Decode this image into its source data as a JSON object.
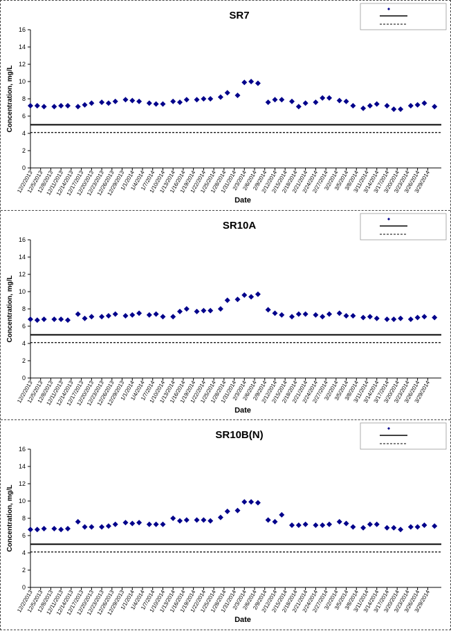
{
  "chart_data": [
    {
      "type": "scatter",
      "title": "SR7",
      "xlabel": "Date",
      "ylabel": "Concentration, mg/L",
      "ylim": [
        0,
        16
      ],
      "yticks": [
        "0",
        "2",
        "4",
        "6",
        "8",
        "10",
        "12",
        "14",
        "16"
      ],
      "xlim": [
        "12/2/2013",
        "4/2/2014"
      ],
      "xticks": [
        "12/2/2013",
        "12/5/2013",
        "12/8/2013",
        "12/11/2013",
        "12/14/2013",
        "12/17/2013",
        "12/20/2013",
        "12/23/2013",
        "12/26/2013",
        "12/29/2013",
        "1/1/2014",
        "1/4/2014",
        "1/7/2014",
        "1/10/2014",
        "1/13/2014",
        "1/16/2014",
        "1/19/2014",
        "1/22/2014",
        "1/25/2014",
        "1/28/2014",
        "1/31/2014",
        "2/3/2014",
        "2/6/2014",
        "2/9/2014",
        "2/12/2014",
        "2/15/2014",
        "2/18/2014",
        "2/21/2014",
        "2/24/2014",
        "2/27/2014",
        "3/2/2014",
        "3/5/2014",
        "3/8/2014",
        "3/11/2014",
        "3/14/2014",
        "3/17/2014",
        "3/20/2014",
        "3/23/2014",
        "3/26/2014",
        "3/29/2014"
      ],
      "grid": false,
      "legend": "top-right",
      "hlines": [
        5,
        4.1
      ],
      "series": [
        {
          "marker": "diamond",
          "color": "#00008B",
          "x": [
            "12/2/2013",
            "12/4/2013",
            "12/6/2013",
            "12/9/2013",
            "12/11/2013",
            "12/13/2013",
            "12/16/2013",
            "12/18/2013",
            "12/20/2013",
            "12/23/2013",
            "12/25/2013",
            "12/27/2013",
            "12/30/2013",
            "1/1/2014",
            "1/3/2014",
            "1/6/2014",
            "1/8/2014",
            "1/10/2014",
            "1/13/2014",
            "1/15/2014",
            "1/17/2014",
            "1/20/2014",
            "1/22/2014",
            "1/24/2014",
            "1/27/2014",
            "1/29/2014",
            "2/1/2014",
            "2/3/2014",
            "2/5/2014",
            "2/7/2014",
            "2/10/2014",
            "2/12/2014",
            "2/14/2014",
            "2/17/2014",
            "2/19/2014",
            "2/21/2014",
            "2/24/2014",
            "2/26/2014",
            "2/28/2014",
            "3/3/2014",
            "3/5/2014",
            "3/7/2014",
            "3/10/2014",
            "3/12/2014",
            "3/14/2014",
            "3/17/2014",
            "3/19/2014",
            "3/21/2014",
            "3/24/2014",
            "3/26/2014",
            "3/28/2014",
            "3/31/2014"
          ],
          "values": [
            7.2,
            7.2,
            7.1,
            7.1,
            7.2,
            7.2,
            7.1,
            7.3,
            7.5,
            7.6,
            7.5,
            7.7,
            7.9,
            7.8,
            7.7,
            7.5,
            7.4,
            7.4,
            7.7,
            7.6,
            7.9,
            7.9,
            8.0,
            8.0,
            8.2,
            8.7,
            8.4,
            9.9,
            10.0,
            9.8,
            7.6,
            7.9,
            7.9,
            7.7,
            7.1,
            7.5,
            7.6,
            8.1,
            8.1,
            7.8,
            7.7,
            7.2,
            6.9,
            7.2,
            7.4,
            7.2,
            6.8,
            6.8,
            7.2,
            7.3,
            7.5,
            7.1
          ]
        }
      ]
    },
    {
      "type": "scatter",
      "title": "SR10A",
      "xlabel": "Date",
      "ylabel": "Concentration, mg/L",
      "ylim": [
        0,
        16
      ],
      "yticks": [
        "0",
        "2",
        "4",
        "6",
        "8",
        "10",
        "12",
        "14",
        "16"
      ],
      "xlim": [
        "12/2/2013",
        "4/2/2014"
      ],
      "xticks": [
        "12/2/2013",
        "12/5/2013",
        "12/8/2013",
        "12/11/2013",
        "12/14/2013",
        "12/17/2013",
        "12/20/2013",
        "12/23/2013",
        "12/26/2013",
        "12/29/2013",
        "1/1/2014",
        "1/4/2014",
        "1/7/2014",
        "1/10/2014",
        "1/13/2014",
        "1/16/2014",
        "1/19/2014",
        "1/22/2014",
        "1/25/2014",
        "1/28/2014",
        "1/31/2014",
        "2/3/2014",
        "2/6/2014",
        "2/9/2014",
        "2/12/2014",
        "2/15/2014",
        "2/18/2014",
        "2/21/2014",
        "2/24/2014",
        "2/27/2014",
        "3/2/2014",
        "3/5/2014",
        "3/8/2014",
        "3/11/2014",
        "3/14/2014",
        "3/17/2014",
        "3/20/2014",
        "3/23/2014",
        "3/26/2014",
        "3/29/2014"
      ],
      "grid": false,
      "legend": "top-right",
      "hlines": [
        5,
        4.1
      ],
      "series": [
        {
          "marker": "diamond",
          "color": "#00008B",
          "x": [
            "12/2/2013",
            "12/4/2013",
            "12/6/2013",
            "12/9/2013",
            "12/11/2013",
            "12/13/2013",
            "12/16/2013",
            "12/18/2013",
            "12/20/2013",
            "12/23/2013",
            "12/25/2013",
            "12/27/2013",
            "12/30/2013",
            "1/1/2014",
            "1/3/2014",
            "1/6/2014",
            "1/8/2014",
            "1/10/2014",
            "1/13/2014",
            "1/15/2014",
            "1/17/2014",
            "1/20/2014",
            "1/22/2014",
            "1/24/2014",
            "1/27/2014",
            "1/29/2014",
            "2/1/2014",
            "2/3/2014",
            "2/5/2014",
            "2/7/2014",
            "2/10/2014",
            "2/12/2014",
            "2/14/2014",
            "2/17/2014",
            "2/19/2014",
            "2/21/2014",
            "2/24/2014",
            "2/26/2014",
            "2/28/2014",
            "3/3/2014",
            "3/5/2014",
            "3/7/2014",
            "3/10/2014",
            "3/12/2014",
            "3/14/2014",
            "3/17/2014",
            "3/19/2014",
            "3/21/2014",
            "3/24/2014",
            "3/26/2014",
            "3/28/2014",
            "3/31/2014"
          ],
          "values": [
            6.8,
            6.7,
            6.8,
            6.8,
            6.8,
            6.7,
            7.4,
            6.9,
            7.1,
            7.1,
            7.2,
            7.4,
            7.2,
            7.3,
            7.5,
            7.3,
            7.4,
            7.1,
            7.1,
            7.7,
            8.0,
            7.7,
            7.8,
            7.8,
            8.0,
            9.0,
            9.1,
            9.6,
            9.4,
            9.7,
            7.9,
            7.5,
            7.3,
            7.1,
            7.4,
            7.4,
            7.3,
            7.1,
            7.4,
            7.5,
            7.2,
            7.2,
            7.0,
            7.1,
            6.9,
            6.8,
            6.8,
            6.9,
            6.8,
            7.0,
            7.1,
            7.0
          ]
        }
      ]
    },
    {
      "type": "scatter",
      "title": "SR10B(N)",
      "xlabel": "Date",
      "ylabel": "Concentration, mg/L",
      "ylim": [
        0,
        16
      ],
      "yticks": [
        "0",
        "2",
        "4",
        "6",
        "8",
        "10",
        "12",
        "14",
        "16"
      ],
      "xlim": [
        "12/2/2013",
        "4/2/2014"
      ],
      "xticks": [
        "12/2/2013",
        "12/5/2013",
        "12/8/2013",
        "12/11/2013",
        "12/14/2013",
        "12/17/2013",
        "12/20/2013",
        "12/23/2013",
        "12/26/2013",
        "12/29/2013",
        "1/1/2014",
        "1/4/2014",
        "1/7/2014",
        "1/10/2014",
        "1/13/2014",
        "1/16/2014",
        "1/19/2014",
        "1/22/2014",
        "1/25/2014",
        "1/28/2014",
        "1/31/2014",
        "2/3/2014",
        "2/6/2014",
        "2/9/2014",
        "2/12/2014",
        "2/15/2014",
        "2/18/2014",
        "2/21/2014",
        "2/24/2014",
        "2/27/2014",
        "3/2/2014",
        "3/5/2014",
        "3/8/2014",
        "3/11/2014",
        "3/14/2014",
        "3/17/2014",
        "3/20/2014",
        "3/23/2014",
        "3/26/2014",
        "3/29/2014"
      ],
      "grid": false,
      "legend": "top-right",
      "hlines": [
        5,
        4.1
      ],
      "series": [
        {
          "marker": "diamond",
          "color": "#00008B",
          "x": [
            "12/2/2013",
            "12/4/2013",
            "12/6/2013",
            "12/9/2013",
            "12/11/2013",
            "12/13/2013",
            "12/16/2013",
            "12/18/2013",
            "12/20/2013",
            "12/23/2013",
            "12/25/2013",
            "12/27/2013",
            "12/30/2013",
            "1/1/2014",
            "1/3/2014",
            "1/6/2014",
            "1/8/2014",
            "1/10/2014",
            "1/13/2014",
            "1/15/2014",
            "1/17/2014",
            "1/20/2014",
            "1/22/2014",
            "1/24/2014",
            "1/27/2014",
            "1/29/2014",
            "2/1/2014",
            "2/3/2014",
            "2/5/2014",
            "2/7/2014",
            "2/10/2014",
            "2/12/2014",
            "2/14/2014",
            "2/17/2014",
            "2/19/2014",
            "2/21/2014",
            "2/24/2014",
            "2/26/2014",
            "2/28/2014",
            "3/3/2014",
            "3/5/2014",
            "3/7/2014",
            "3/10/2014",
            "3/12/2014",
            "3/14/2014",
            "3/17/2014",
            "3/19/2014",
            "3/21/2014",
            "3/24/2014",
            "3/26/2014",
            "3/28/2014",
            "3/31/2014"
          ],
          "values": [
            6.7,
            6.7,
            6.8,
            6.8,
            6.7,
            6.8,
            7.6,
            7.0,
            7.0,
            7.0,
            7.1,
            7.3,
            7.5,
            7.4,
            7.5,
            7.3,
            7.3,
            7.3,
            8.0,
            7.7,
            7.8,
            7.8,
            7.8,
            7.7,
            8.1,
            8.8,
            8.9,
            9.9,
            9.9,
            9.8,
            7.8,
            7.6,
            8.4,
            7.2,
            7.2,
            7.3,
            7.2,
            7.2,
            7.3,
            7.6,
            7.4,
            7.0,
            6.9,
            7.3,
            7.3,
            6.9,
            6.9,
            6.7,
            7.0,
            7.0,
            7.2,
            7.1
          ]
        }
      ]
    }
  ]
}
